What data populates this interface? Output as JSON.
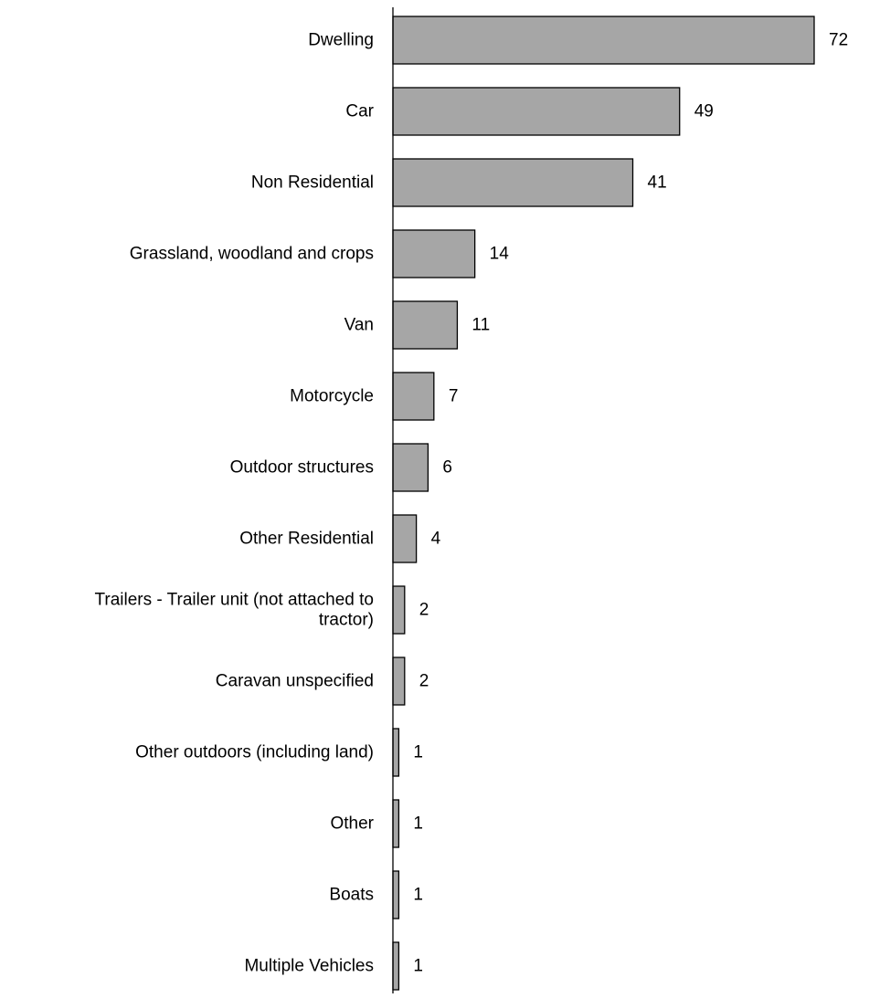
{
  "chart_data": {
    "type": "bar",
    "orientation": "horizontal",
    "categories": [
      [
        "Dwelling"
      ],
      [
        "Car"
      ],
      [
        "Non Residential"
      ],
      [
        "Grassland, woodland and crops"
      ],
      [
        "Van"
      ],
      [
        "Motorcycle"
      ],
      [
        "Outdoor structures"
      ],
      [
        "Other Residential"
      ],
      [
        "Trailers - Trailer unit (not attached to",
        "tractor)"
      ],
      [
        "Caravan unspecified"
      ],
      [
        "Other outdoors (including land)"
      ],
      [
        "Other"
      ],
      [
        "Boats"
      ],
      [
        "Multiple Vehicles"
      ]
    ],
    "values": [
      72,
      49,
      41,
      14,
      11,
      7,
      6,
      4,
      2,
      2,
      1,
      1,
      1,
      1
    ],
    "value_labels": [
      "72",
      "49",
      "41",
      "14",
      "11",
      "7",
      "6",
      "4",
      "2",
      "2",
      "1",
      "1",
      "1",
      "1"
    ],
    "xlim": [
      0,
      72
    ],
    "bar_color": "#a6a6a6",
    "bar_outline_color": "#000000",
    "axis_color": "#000000",
    "grid": false,
    "legend": "none"
  }
}
